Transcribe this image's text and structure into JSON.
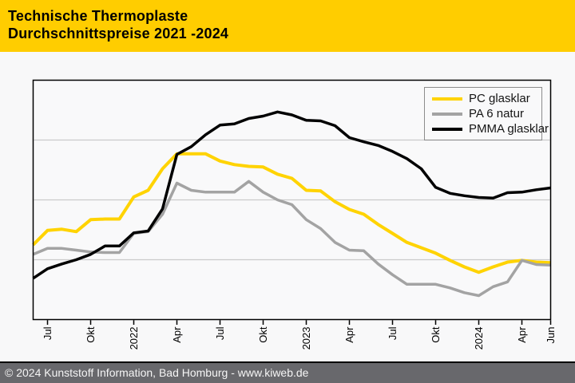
{
  "header": {
    "title_line1": "Technische Thermoplaste",
    "title_line2": "Durchschnittspreise 2021 -2024"
  },
  "footer": {
    "text": "© 2024 Kunststoff Information, Bad Homburg - www.kiweb.de"
  },
  "colors": {
    "header_bg": "#ffcd00",
    "header_text": "#000000",
    "page_bg": "#f8f8f9",
    "plot_bg": "#f9f9fa",
    "grid": "#cbcbcb",
    "axis": "#000000",
    "legend_border": "#8c8c8c",
    "footer_bg": "#68686c",
    "footer_text": "#f5f5f5",
    "pc_glasklar": "#ffd300",
    "pa6_natur": "#a3a3a3",
    "pmma_glasklar": "#000000"
  },
  "legend": {
    "items": [
      {
        "id": "pc-glasklar",
        "label": "PC glasklar",
        "color": "#ffd300"
      },
      {
        "id": "pa6-natur",
        "label": "PA 6 natur",
        "color": "#a3a3a3"
      },
      {
        "id": "pmma-glasklar",
        "label": "PMMA glasklar",
        "color": "#000000"
      }
    ]
  },
  "chart_data": {
    "type": "line",
    "title": "Technische Thermoplaste Durchschnittspreise 2021 -2024",
    "x_unit": "month",
    "x_monthly_from": "2021-06",
    "x_monthly_to": "2024-06",
    "points_per_series": 37,
    "y_axis": {
      "labels_visible": false,
      "scale": "relative price index in gridline units (no numeric labels shown)",
      "ylim": [
        0,
        4
      ],
      "gridlines": [
        1,
        2,
        3
      ]
    },
    "ticks": [
      {
        "month": 1,
        "label": "Jul"
      },
      {
        "month": 4,
        "label": "Okt"
      },
      {
        "month": 7,
        "label": "2022"
      },
      {
        "month": 10,
        "label": "Apr"
      },
      {
        "month": 13,
        "label": "Jul"
      },
      {
        "month": 16,
        "label": "Okt"
      },
      {
        "month": 19,
        "label": "2023"
      },
      {
        "month": 22,
        "label": "Apr"
      },
      {
        "month": 25,
        "label": "Jul"
      },
      {
        "month": 28,
        "label": "Okt"
      },
      {
        "month": 31,
        "label": "2024"
      },
      {
        "month": 34,
        "label": "Apr"
      },
      {
        "month": 36,
        "label": "Jun"
      }
    ],
    "legend_position": "top-right",
    "series": [
      {
        "name": "PC glasklar",
        "id": "pc-glasklar",
        "color": "#ffd300",
        "values": [
          1.25,
          1.49,
          1.51,
          1.47,
          1.67,
          1.68,
          1.68,
          2.05,
          2.16,
          2.52,
          2.77,
          2.77,
          2.77,
          2.65,
          2.59,
          2.56,
          2.55,
          2.43,
          2.36,
          2.16,
          2.15,
          1.97,
          1.84,
          1.76,
          1.59,
          1.44,
          1.29,
          1.2,
          1.11,
          0.99,
          0.88,
          0.79,
          0.88,
          0.96,
          0.99,
          0.96,
          0.95
        ]
      },
      {
        "name": "PA 6 natur",
        "id": "pa6-natur",
        "color": "#a3a3a3",
        "values": [
          1.09,
          1.19,
          1.19,
          1.16,
          1.13,
          1.12,
          1.12,
          1.44,
          1.47,
          1.76,
          2.28,
          2.16,
          2.13,
          2.13,
          2.13,
          2.31,
          2.13,
          2.0,
          1.92,
          1.67,
          1.52,
          1.29,
          1.16,
          1.15,
          0.93,
          0.75,
          0.59,
          0.59,
          0.59,
          0.53,
          0.45,
          0.4,
          0.55,
          0.63,
          0.99,
          0.92,
          0.91
        ]
      },
      {
        "name": "PMMA glasklar",
        "id": "pmma-glasklar",
        "color": "#000000",
        "values": [
          0.69,
          0.85,
          0.93,
          1.0,
          1.09,
          1.23,
          1.23,
          1.45,
          1.48,
          1.85,
          2.76,
          2.89,
          3.09,
          3.25,
          3.27,
          3.36,
          3.4,
          3.47,
          3.42,
          3.33,
          3.32,
          3.24,
          3.04,
          2.97,
          2.91,
          2.81,
          2.69,
          2.52,
          2.21,
          2.11,
          2.07,
          2.04,
          2.03,
          2.12,
          2.13,
          2.17,
          2.2
        ]
      }
    ]
  }
}
